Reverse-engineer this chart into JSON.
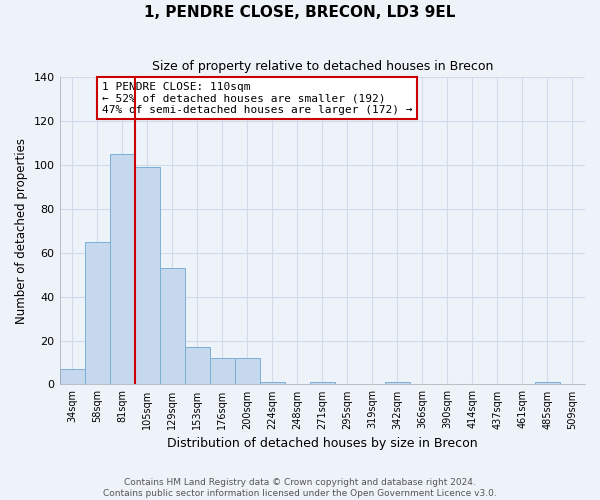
{
  "title": "1, PENDRE CLOSE, BRECON, LD3 9EL",
  "subtitle": "Size of property relative to detached houses in Brecon",
  "xlabel": "Distribution of detached houses by size in Brecon",
  "ylabel": "Number of detached properties",
  "bar_labels": [
    "34sqm",
    "58sqm",
    "81sqm",
    "105sqm",
    "129sqm",
    "153sqm",
    "176sqm",
    "200sqm",
    "224sqm",
    "248sqm",
    "271sqm",
    "295sqm",
    "319sqm",
    "342sqm",
    "366sqm",
    "390sqm",
    "414sqm",
    "437sqm",
    "461sqm",
    "485sqm",
    "509sqm"
  ],
  "bar_values": [
    7,
    65,
    105,
    99,
    53,
    17,
    12,
    12,
    1,
    0,
    1,
    0,
    0,
    1,
    0,
    0,
    0,
    0,
    0,
    1,
    0
  ],
  "bar_color": "#c5d8ee",
  "bar_edge_color": "#7aafd4",
  "vline_x_idx": 3,
  "vline_color": "#cc0000",
  "annotation_text": "1 PENDRE CLOSE: 110sqm\n← 52% of detached houses are smaller (192)\n47% of semi-detached houses are larger (172) →",
  "annotation_box_color": "#ffffff",
  "annotation_box_edge": "#cc0000",
  "ylim": [
    0,
    140
  ],
  "yticks": [
    0,
    20,
    40,
    60,
    80,
    100,
    120,
    140
  ],
  "footer_line1": "Contains HM Land Registry data © Crown copyright and database right 2024.",
  "footer_line2": "Contains public sector information licensed under the Open Government Licence v3.0.",
  "grid_color": "#d0dcea",
  "background_color": "#eef2f9",
  "figsize": [
    6.0,
    5.0
  ],
  "dpi": 100
}
